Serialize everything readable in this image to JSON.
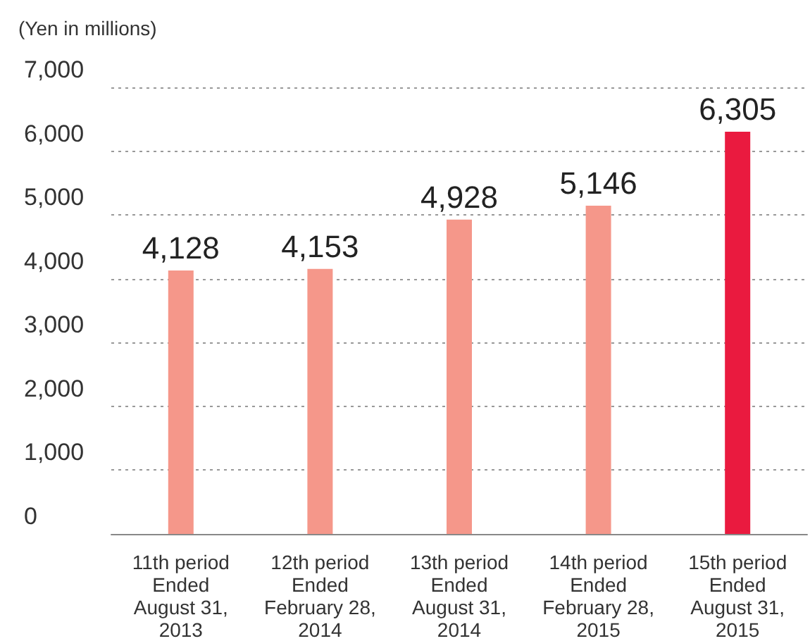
{
  "chart_data": {
    "type": "bar",
    "ylabel": "(Yen in millions)",
    "categories": [
      "11th period\nEnded\nAugust 31,\n2013",
      "12th period\nEnded\nFebruary 28,\n2014",
      "13th period\nEnded\nAugust 31,\n2014",
      "14th period\nEnded\nFebruary 28,\n2015",
      "15th period\nEnded\nAugust 31,\n2015"
    ],
    "values": [
      4128,
      4153,
      4928,
      5146,
      6305
    ],
    "value_labels": [
      "4,128",
      "4,153",
      "4,928",
      "5,146",
      "6,305"
    ],
    "colors": [
      "#f5978a",
      "#f5978a",
      "#f5978a",
      "#f5978a",
      "#ea1a3f"
    ],
    "ylim": [
      0,
      7000
    ],
    "yticks": [
      {
        "value": 0,
        "label": "0"
      },
      {
        "value": 1000,
        "label": "1,000"
      },
      {
        "value": 2000,
        "label": "2,000"
      },
      {
        "value": 3000,
        "label": "3,000"
      },
      {
        "value": 4000,
        "label": "4,000"
      },
      {
        "value": 5000,
        "label": "5,000"
      },
      {
        "value": 6000,
        "label": "6,000"
      },
      {
        "value": 7000,
        "label": "7,000"
      }
    ],
    "grid": "y"
  }
}
